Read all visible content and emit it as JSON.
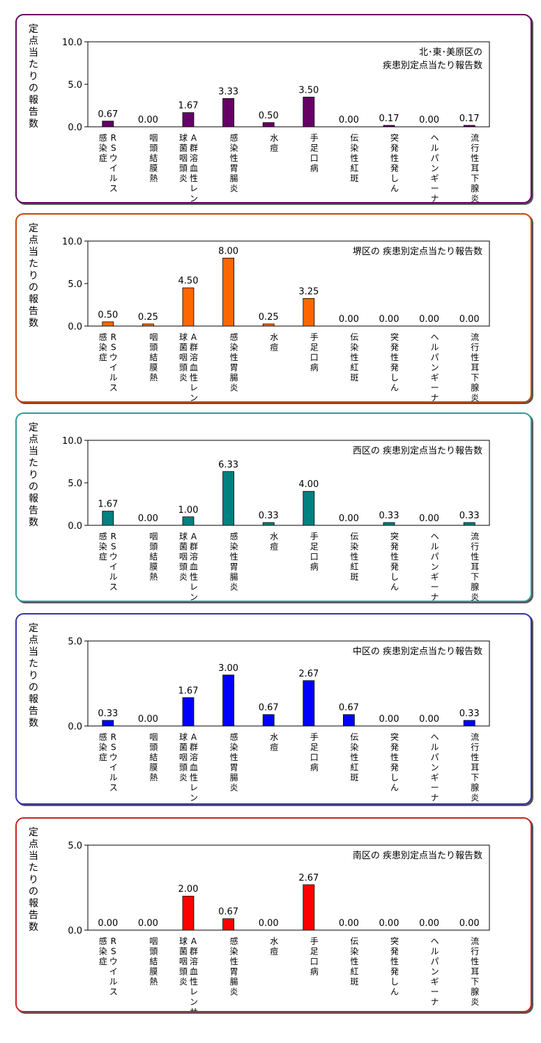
{
  "y_axis_label": "定点当たりの報告数",
  "category_labels": [
    [
      "RSウイルス",
      "感染症"
    ],
    [
      "咽頭結膜熱"
    ],
    [
      "A群溶血性レンサ",
      "球菌咽頭炎"
    ],
    [
      "感染性胃腸炎"
    ],
    [
      "水痘"
    ],
    [
      "手足口病"
    ],
    [
      "伝染性紅斑"
    ],
    [
      "突発性発しん"
    ],
    [
      "ヘルパンギーナ"
    ],
    [
      "流行性耳下腺炎"
    ]
  ],
  "chart_data": [
    {
      "type": "bar",
      "title": [
        "北･東･美原区の",
        "疾患別定点当たり報告数"
      ],
      "ylabel": "定点当たりの報告数",
      "categories": [
        "RSウイルス感染症",
        "咽頭結膜熱",
        "A群溶血性レンサ球菌咽頭炎",
        "感染性胃腸炎",
        "水痘",
        "手足口病",
        "伝染性紅斑",
        "突発性発しん",
        "ヘルパンギーナ",
        "流行性耳下腺炎"
      ],
      "values": [
        0.67,
        0.0,
        1.67,
        3.33,
        0.5,
        3.5,
        0.0,
        0.17,
        0.0,
        0.17
      ],
      "ylim": [
        0,
        10
      ],
      "yticks": [
        "0.0",
        "5.0",
        "10.0"
      ],
      "color": "#660066",
      "border_color": "#660066"
    },
    {
      "type": "bar",
      "title": [
        "堺区の 疾患別定点当たり報告数"
      ],
      "ylabel": "定点当たりの報告数",
      "categories": [
        "RSウイルス感染症",
        "咽頭結膜熱",
        "A群溶血性レンサ球菌咽頭炎",
        "感染性胃腸炎",
        "水痘",
        "手足口病",
        "伝染性紅斑",
        "突発性発しん",
        "ヘルパンギーナ",
        "流行性耳下腺炎"
      ],
      "values": [
        0.5,
        0.25,
        4.5,
        8.0,
        0.25,
        3.25,
        0.0,
        0.0,
        0.0,
        0.0
      ],
      "ylim": [
        0,
        10
      ],
      "yticks": [
        "0.0",
        "5.0",
        "10.0"
      ],
      "color": "#ff6600",
      "border_color": "#cc4400"
    },
    {
      "type": "bar",
      "title": [
        "西区の 疾患別定点当たり報告数"
      ],
      "ylabel": "定点当たりの報告数",
      "categories": [
        "RSウイルス感染症",
        "咽頭結膜熱",
        "A群溶血性レンサ球菌咽頭炎",
        "感染性胃腸炎",
        "水痘",
        "手足口病",
        "伝染性紅斑",
        "突発性発しん",
        "ヘルパンギーナ",
        "流行性耳下腺炎"
      ],
      "values": [
        1.67,
        0.0,
        1.0,
        6.33,
        0.33,
        4.0,
        0.0,
        0.33,
        0.0,
        0.33
      ],
      "ylim": [
        0,
        10
      ],
      "yticks": [
        "0.0",
        "5.0",
        "10.0"
      ],
      "color": "#008080",
      "border_color": "#339999"
    },
    {
      "type": "bar",
      "title": [
        "中区の 疾患別定点当たり報告数"
      ],
      "ylabel": "定点当たりの報告数",
      "categories": [
        "RSウイルス感染症",
        "咽頭結膜熱",
        "A群溶血性レンサ球菌咽頭炎",
        "感染性胃腸炎",
        "水痘",
        "手足口病",
        "伝染性紅斑",
        "突発性発しん",
        "ヘルパンギーナ",
        "流行性耳下腺炎"
      ],
      "values": [
        0.33,
        0.0,
        1.67,
        3.0,
        0.67,
        2.67,
        0.67,
        0.0,
        0.0,
        0.33
      ],
      "ylim": [
        0,
        5
      ],
      "yticks": [
        "0.0",
        "5.0"
      ],
      "color": "#0000ff",
      "border_color": "#3333aa"
    },
    {
      "type": "bar",
      "title": [
        "南区の 疾患別定点当たり報告数"
      ],
      "ylabel": "定点当たりの報告数",
      "categories": [
        "RSウイルス感染症",
        "咽頭結膜熱",
        "A群溶血性レンサ球菌咽頭炎",
        "感染性胃腸炎",
        "水痘",
        "手足口病",
        "伝染性紅斑",
        "突発性発しん",
        "ヘルパンギーナ",
        "流行性耳下腺炎"
      ],
      "values": [
        0.0,
        0.0,
        2.0,
        0.67,
        0.0,
        2.67,
        0.0,
        0.0,
        0.0,
        0.0
      ],
      "ylim": [
        0,
        5
      ],
      "yticks": [
        "0.0",
        "5.0"
      ],
      "color": "#ff0000",
      "border_color": "#cc2222"
    }
  ]
}
